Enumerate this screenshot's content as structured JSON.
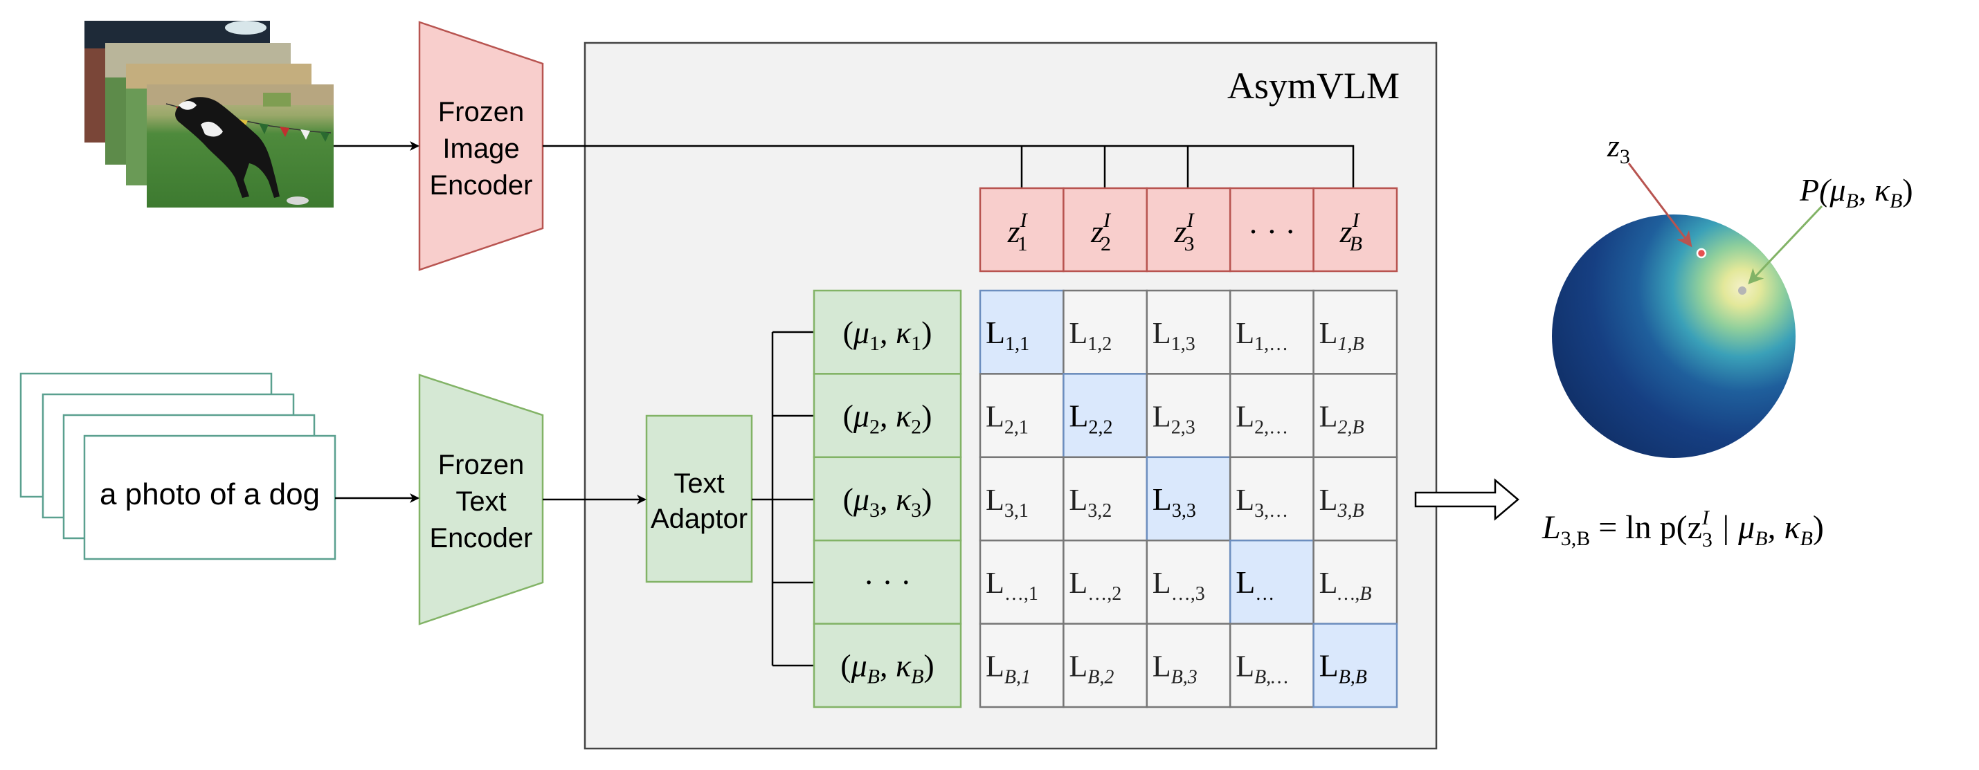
{
  "title": "AsymVLM",
  "inputs": {
    "text_caption": "a photo of a dog"
  },
  "encoders": {
    "image": [
      "Frozen",
      "Image",
      "Encoder"
    ],
    "text": [
      "Frozen",
      "Text",
      "Encoder"
    ]
  },
  "adaptor": [
    "Text",
    "Adaptor"
  ],
  "image_embeddings": [
    {
      "base": "z",
      "sup": "I",
      "sub": "1"
    },
    {
      "base": "z",
      "sup": "I",
      "sub": "2"
    },
    {
      "base": "z",
      "sup": "I",
      "sub": "3"
    },
    {
      "base": "· · ·",
      "sup": "",
      "sub": ""
    },
    {
      "base": "z",
      "sup": "I",
      "sub": "B"
    }
  ],
  "text_distributions": [
    {
      "mu": "μ",
      "mu_sub": "1",
      "kappa": "κ",
      "kappa_sub": "1"
    },
    {
      "mu": "μ",
      "mu_sub": "2",
      "kappa": "κ",
      "kappa_sub": "2"
    },
    {
      "mu": "μ",
      "mu_sub": "3",
      "kappa": "κ",
      "kappa_sub": "3"
    },
    {
      "ellipsis": "· · ·"
    },
    {
      "mu": "μ",
      "mu_sub": "B",
      "kappa": "κ",
      "kappa_sub": "B"
    }
  ],
  "matrix": {
    "row_subs": [
      "1",
      "2",
      "3",
      "…",
      "B"
    ],
    "col_subs": [
      "1",
      "2",
      "3",
      "…",
      "B"
    ],
    "letter": "L"
  },
  "sphere": {
    "point_label": "z",
    "point_sub": "3",
    "dist_label": "P(μ",
    "dist_sub1": "B",
    "dist_mid": ", κ",
    "dist_sub2": "B",
    "dist_close": ")"
  },
  "equation": {
    "lhs": "L",
    "lhs_sub": "3,B",
    "eq": " = ln p(z",
    "z_sup": "I",
    "z_sub": "3",
    "rest": " | μ",
    "mu_sub": "B",
    "comma": ", κ",
    "kappa_sub": "B",
    "close": ")"
  },
  "colors": {
    "image_enc_fill": "#f8cecc",
    "image_enc_stroke": "#b85450",
    "text_enc_fill": "#d5e8d4",
    "text_enc_stroke": "#82b366",
    "card_stroke": "#5aa08f",
    "panel_fill": "#f2f2f2",
    "matrix_fill": "#f5f5f5",
    "diag_fill": "#dae8fc",
    "diag_stroke": "#6c8ebf",
    "arrow_red": "#b85450",
    "arrow_green": "#82b366"
  }
}
